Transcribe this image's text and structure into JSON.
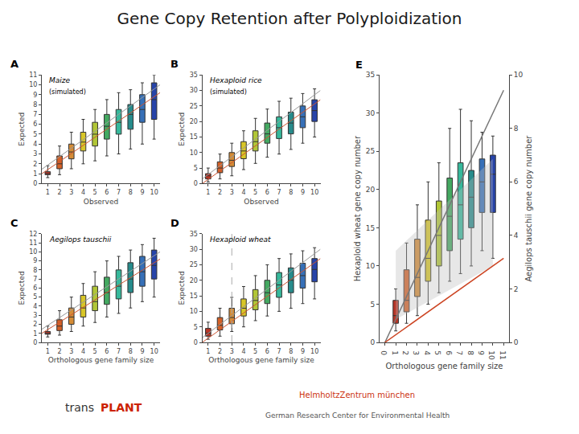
{
  "title": "Gene Copy Retention after Polyploidization",
  "annotations": [
    {
      "text": "trans",
      "color": "#333333"
    },
    {
      "text": "PLANT",
      "color": "#cc2200"
    },
    {
      "text": "HelmholtzZentrum münchen",
      "color": "#cc3311"
    },
    {
      "text": "German Research Center for Environmental Health",
      "color": "#555555"
    }
  ],
  "chart_data": [
    {
      "type": "box",
      "annotations": [
        {
          "text": "A"
        }
      ],
      "title": "Maize",
      "subtitle": "(simulated)",
      "xlabel": "Observed",
      "ylabel": "Expected",
      "xlim": [
        0.5,
        10.5
      ],
      "ylim": [
        0,
        11
      ],
      "xticks": [
        1,
        2,
        3,
        4,
        5,
        6,
        7,
        8,
        9,
        10
      ],
      "yticks": [
        0,
        1,
        2,
        3,
        4,
        5,
        6,
        7,
        8,
        9,
        10,
        11
      ],
      "grid": false,
      "x": [
        1,
        2,
        3,
        4,
        5,
        6,
        7,
        8,
        9,
        10
      ],
      "median": [
        1.0,
        2.0,
        3.2,
        4.2,
        5.0,
        5.8,
        6.2,
        7.0,
        7.5,
        8.5
      ],
      "q1": [
        0.9,
        1.5,
        2.5,
        3.3,
        3.8,
        4.5,
        5.0,
        5.5,
        6.2,
        6.5
      ],
      "q3": [
        1.2,
        2.8,
        4.0,
        5.2,
        6.2,
        7.0,
        7.5,
        8.0,
        9.0,
        10.2
      ],
      "lower": [
        0.6,
        0.9,
        1.5,
        2.0,
        2.3,
        2.8,
        3.0,
        3.5,
        4.0,
        4.5
      ],
      "upper": [
        1.8,
        3.8,
        5.2,
        6.5,
        7.5,
        8.5,
        9.2,
        9.5,
        10.2,
        11.0
      ],
      "colors": [
        "#b02010",
        "#d05010",
        "#d08020",
        "#d4c010",
        "#a8c020",
        "#30a050",
        "#20b090",
        "#108080",
        "#2060b0",
        "#1030a0"
      ],
      "series": [
        {
          "type": "line",
          "color": "#999999",
          "x": [
            0.5,
            10.5
          ],
          "values": [
            1.45,
            10
          ]
        },
        {
          "type": "line",
          "color": "#cc5533",
          "x": [
            0.5,
            10.5
          ],
          "values": [
            1,
            9.2
          ]
        }
      ]
    },
    {
      "type": "box",
      "annotations": [
        {
          "text": "B"
        }
      ],
      "title": "Hexaploid rice",
      "subtitle": "(simulated)",
      "xlabel": "Observed",
      "ylabel": "Expected",
      "xlim": [
        0.5,
        10.5
      ],
      "ylim": [
        0,
        35
      ],
      "xticks": [
        1,
        2,
        3,
        4,
        5,
        6,
        7,
        8,
        9,
        10
      ],
      "yticks": [
        0,
        5,
        10,
        15,
        20,
        25,
        30,
        35
      ],
      "grid": false,
      "x": [
        1,
        2,
        3,
        4,
        5,
        6,
        7,
        8,
        9,
        10
      ],
      "median": [
        2.5,
        5.0,
        7.5,
        10.5,
        13.5,
        16.0,
        18.0,
        19.5,
        21.5,
        23.5
      ],
      "q1": [
        1.5,
        3.5,
        5.5,
        8.0,
        10.5,
        13.0,
        14.5,
        16.0,
        18.0,
        20.0
      ],
      "q3": [
        3.2,
        7.0,
        10.0,
        13.5,
        17.0,
        19.5,
        21.5,
        23.0,
        25.0,
        27.0
      ],
      "lower": [
        0.5,
        1.5,
        2.5,
        4.5,
        6.5,
        8.5,
        9.5,
        11.0,
        13.0,
        15.0
      ],
      "upper": [
        5.0,
        9.5,
        13.0,
        17.0,
        21.0,
        24.0,
        26.5,
        27.5,
        29.0,
        30.5
      ],
      "colors": [
        "#b02010",
        "#d05010",
        "#d08020",
        "#d4c010",
        "#a8c020",
        "#30a050",
        "#20b090",
        "#108080",
        "#2060b0",
        "#1030a0"
      ],
      "series": [
        {
          "type": "line",
          "color": "#999999",
          "x": [
            0.5,
            10.5
          ],
          "values": [
            1.5,
            30
          ]
        },
        {
          "type": "line",
          "color": "#cc5533",
          "x": [
            0.5,
            10.5
          ],
          "values": [
            0,
            27
          ]
        }
      ]
    },
    {
      "type": "box",
      "annotations": [
        {
          "text": "C"
        }
      ],
      "title": "Aegilops tauschii",
      "xlabel": "Orthologous gene family size",
      "ylabel": "Expected",
      "xlim": [
        0.5,
        10.5
      ],
      "ylim": [
        0,
        12
      ],
      "xticks": [
        1,
        2,
        3,
        4,
        5,
        6,
        7,
        8,
        9,
        10
      ],
      "yticks": [
        0,
        1,
        2,
        3,
        4,
        5,
        6,
        7,
        8,
        9,
        10,
        11,
        12
      ],
      "grid": false,
      "x": [
        1,
        2,
        3,
        4,
        5,
        6,
        7,
        8,
        9,
        10
      ],
      "median": [
        1.0,
        1.8,
        2.8,
        3.8,
        4.5,
        5.5,
        6.2,
        7.0,
        7.8,
        8.5
      ],
      "q1": [
        0.9,
        1.3,
        2.0,
        2.8,
        3.5,
        4.2,
        4.8,
        5.5,
        6.2,
        7.0
      ],
      "q3": [
        1.2,
        2.5,
        3.8,
        5.2,
        6.2,
        7.2,
        8.0,
        8.8,
        9.5,
        10.2
      ],
      "lower": [
        0.6,
        0.8,
        1.2,
        1.8,
        2.2,
        2.8,
        3.2,
        3.8,
        4.5,
        5.0
      ],
      "upper": [
        1.8,
        3.5,
        5.0,
        6.5,
        7.8,
        9.0,
        9.5,
        10.2,
        10.8,
        11.5
      ],
      "colors": [
        "#b02010",
        "#d05010",
        "#d08020",
        "#d4c010",
        "#a8c020",
        "#30a050",
        "#20b090",
        "#108080",
        "#2060b0",
        "#1030a0"
      ],
      "series": [
        {
          "type": "line",
          "color": "#999999",
          "x": [
            0.5,
            10.5
          ],
          "values": [
            1.45,
            10
          ]
        },
        {
          "type": "line",
          "color": "#cc5533",
          "x": [
            0.5,
            10.5
          ],
          "values": [
            1,
            9.2
          ]
        }
      ]
    },
    {
      "type": "box",
      "annotations": [
        {
          "text": "D"
        }
      ],
      "title": "Hexaploid wheat",
      "xlabel": "Orthologous gene family size",
      "ylabel": "Expected",
      "xlim": [
        0.5,
        10.5
      ],
      "ylim": [
        0,
        35
      ],
      "xticks": [
        1,
        2,
        3,
        4,
        5,
        6,
        7,
        8,
        9,
        10
      ],
      "yticks": [
        0,
        5,
        10,
        15,
        20,
        25,
        30,
        35
      ],
      "grid": false,
      "x": [
        1,
        2,
        3,
        4,
        5,
        6,
        7,
        8,
        9,
        10
      ],
      "median": [
        3.0,
        5.5,
        8.0,
        11.0,
        13.5,
        16.0,
        18.5,
        20.0,
        21.5,
        23.5
      ],
      "q1": [
        2.0,
        4.0,
        6.0,
        8.5,
        10.5,
        12.5,
        14.5,
        16.0,
        17.5,
        19.5
      ],
      "q3": [
        4.5,
        8.0,
        11.0,
        14.0,
        17.0,
        20.0,
        22.5,
        24.0,
        25.5,
        27.0
      ],
      "lower": [
        1.0,
        2.0,
        3.5,
        5.0,
        7.0,
        8.5,
        10.0,
        11.0,
        12.5,
        14.0
      ],
      "upper": [
        6.5,
        11.0,
        14.5,
        18.0,
        21.5,
        25.0,
        27.0,
        28.5,
        29.5,
        30.5
      ],
      "colors": [
        "#b02010",
        "#d05010",
        "#d08020",
        "#d4c010",
        "#a8c020",
        "#30a050",
        "#20b090",
        "#108080",
        "#2060b0",
        "#1030a0"
      ],
      "series": [
        {
          "type": "line",
          "color": "#999999",
          "x": [
            0.5,
            10.5
          ],
          "values": [
            1.5,
            30
          ]
        },
        {
          "type": "line",
          "color": "#cc5533",
          "x": [
            0.5,
            10.5
          ],
          "values": [
            0,
            27
          ]
        },
        {
          "type": "vline",
          "x": 3,
          "line_style": "dashed",
          "color": "#aaaaaa"
        }
      ]
    },
    {
      "type": "box",
      "annotations": [
        {
          "text": "E"
        }
      ],
      "xlabel": "Orthologous gene family size",
      "ylabel": "Hexaploid wheat gene copy number",
      "y2label": "Aegilops tauschii gene copy number",
      "xlim": [
        -0.5,
        11.5
      ],
      "ylim": [
        0,
        35
      ],
      "y2lim": [
        0,
        10
      ],
      "xticks": [
        0,
        1,
        2,
        3,
        4,
        5,
        6,
        7,
        8,
        9,
        10,
        11
      ],
      "yticks": [
        0,
        5,
        10,
        15,
        20,
        25,
        30,
        35
      ],
      "y2ticks": [
        0,
        2,
        4,
        6,
        8,
        10
      ],
      "grid": false,
      "x": [
        1,
        2,
        3,
        4,
        5,
        6,
        7,
        8,
        9,
        10
      ],
      "median": [
        3.5,
        5.5,
        8.5,
        11.0,
        14.0,
        16.5,
        18.0,
        19.0,
        21.0,
        22.0
      ],
      "q1": [
        2.5,
        4.0,
        6.0,
        8.0,
        10.0,
        12.0,
        13.5,
        15.0,
        17.0,
        17.0
      ],
      "q3": [
        5.5,
        9.5,
        13.5,
        16.0,
        18.5,
        21.5,
        23.5,
        22.5,
        24.0,
        24.5
      ],
      "lower": [
        1.5,
        2.5,
        3.5,
        5.0,
        6.5,
        8.0,
        9.0,
        10.0,
        12.0,
        11.0
      ],
      "upper": [
        7.0,
        13.0,
        18.0,
        21.0,
        23.5,
        28.0,
        30.5,
        29.0,
        27.5,
        27.0
      ],
      "colors": [
        "#b02010",
        "#d05010",
        "#d08020",
        "#d4c010",
        "#a8c020",
        "#30a050",
        "#20b090",
        "#108080",
        "#2060b0",
        "#1030a0"
      ],
      "series": [
        {
          "type": "band",
          "color": "#bbbbbb",
          "x": [
            1,
            10
          ],
          "lower": [
            3,
            10
          ],
          "upper": [
            12,
            24
          ]
        },
        {
          "type": "line",
          "color": "#777777",
          "x": [
            0,
            11
          ],
          "values": [
            0,
            33
          ]
        },
        {
          "type": "line",
          "color": "#cc4422",
          "x": [
            0,
            11
          ],
          "values": [
            0,
            11
          ]
        }
      ]
    }
  ]
}
